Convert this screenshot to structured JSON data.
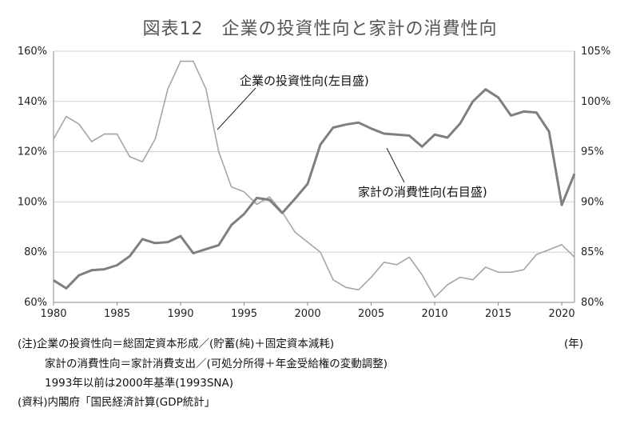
{
  "chart_data": {
    "type": "line",
    "title": "図表12　企業の投資性向と家計の消費性向",
    "x": [
      1980,
      1981,
      1982,
      1983,
      1984,
      1985,
      1986,
      1987,
      1988,
      1989,
      1990,
      1991,
      1992,
      1993,
      1994,
      1995,
      1996,
      1997,
      1998,
      1999,
      2000,
      2001,
      2002,
      2003,
      2004,
      2005,
      2006,
      2007,
      2008,
      2009,
      2010,
      2011,
      2012,
      2013,
      2014,
      2015,
      2016,
      2017,
      2018,
      2019,
      2020,
      2021
    ],
    "x_ticks": [
      "1980",
      "1985",
      "1990",
      "1995",
      "2000",
      "2005",
      "2010",
      "2015",
      "2020"
    ],
    "x_unit": "(年)",
    "left_axis": {
      "ylim": [
        60,
        160
      ],
      "ticks": [
        "60%",
        "80%",
        "100%",
        "120%",
        "140%",
        "160%"
      ]
    },
    "right_axis": {
      "ylim": [
        80,
        105
      ],
      "ticks": [
        "80%",
        "85%",
        "90%",
        "95%",
        "100%",
        "105%"
      ]
    },
    "grid": "horizontal",
    "series": [
      {
        "name": "企業の投資性向(左目盛)",
        "axis": "left",
        "color": "#a6a6a6",
        "values": [
          125,
          134,
          131,
          124,
          127,
          127,
          118,
          116,
          125,
          145,
          156,
          156,
          145,
          120,
          106,
          104,
          99,
          102,
          96,
          88,
          84,
          80,
          69,
          66,
          65,
          70,
          76,
          75,
          78,
          71,
          62,
          67,
          70,
          69,
          74,
          72,
          72,
          73,
          79,
          81,
          83,
          78
        ]
      },
      {
        "name": "家計の消費性向(右目盛)",
        "axis": "right",
        "color": "#7f7f7f",
        "values": [
          82.2,
          81.4,
          82.7,
          83.2,
          83.3,
          83.7,
          84.6,
          86.3,
          85.9,
          86.0,
          86.6,
          84.9,
          85.3,
          85.7,
          87.7,
          88.8,
          90.4,
          90.2,
          88.9,
          90.3,
          91.8,
          95.7,
          97.4,
          97.7,
          97.9,
          97.3,
          96.8,
          96.7,
          96.6,
          95.5,
          96.7,
          96.4,
          97.8,
          100.0,
          101.2,
          100.4,
          98.6,
          99.0,
          98.9,
          97.0,
          89.7,
          92.8
        ]
      }
    ]
  },
  "notes": {
    "line1": "(注)企業の投資性向＝総固定資本形成／(貯蓄(純)＋固定資本減耗)",
    "line2": "家計の消費性向＝家計消費支出／(可処分所得＋年金受給権の変動調整)",
    "line3": "1993年以前は2000年基準(1993SNA)",
    "line4": "(資料)内閣府「国民経済計算(GDP統計」"
  }
}
